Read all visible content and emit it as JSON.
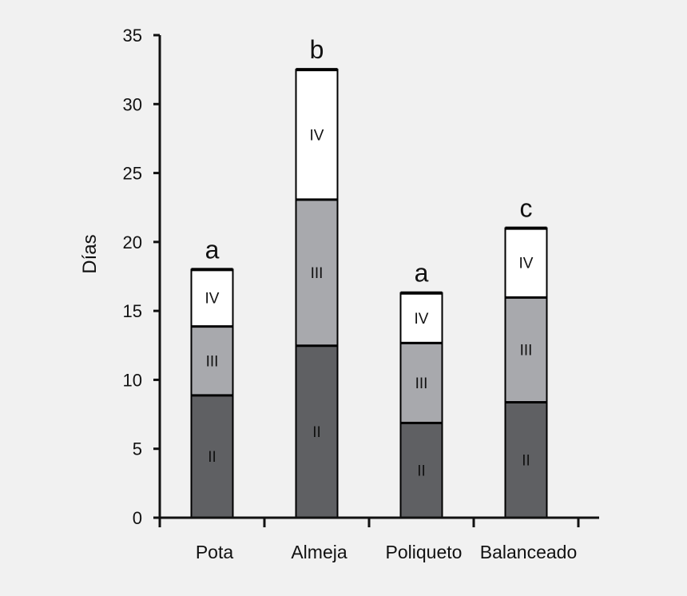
{
  "chart_data": {
    "type": "stacked-bar",
    "title": "",
    "xlabel": "",
    "ylabel": "Días",
    "ylim": [
      0,
      35
    ],
    "yticks": [
      0,
      5,
      10,
      15,
      20,
      25,
      30,
      35
    ],
    "categories": [
      "Pota",
      "Almeja",
      "Poliqueto",
      "Balanceado"
    ],
    "series": [
      {
        "name": "II",
        "values": [
          8.9,
          12.5,
          6.9,
          8.4
        ],
        "color": "#5f6063",
        "label_color": "#111111"
      },
      {
        "name": "III",
        "values": [
          5.0,
          10.6,
          5.8,
          7.6
        ],
        "color": "#a8a9ad",
        "label_color": "#111111"
      },
      {
        "name": "IV",
        "values": [
          4.1,
          9.4,
          3.6,
          5.0
        ],
        "color": "#ffffff",
        "label_color": "#111111"
      }
    ],
    "significance": [
      "a",
      "b",
      "a",
      "c"
    ],
    "grid": false,
    "legend": "none"
  }
}
